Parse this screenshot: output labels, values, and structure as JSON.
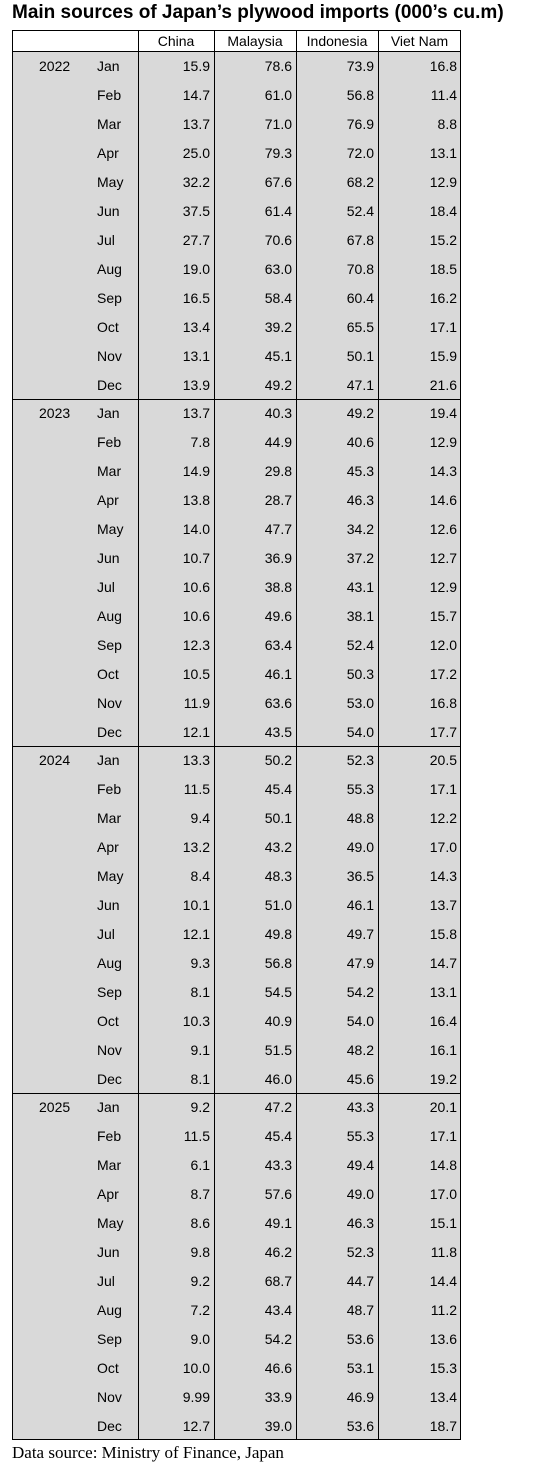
{
  "title": "Main sources of Japan’s plywood imports (000’s cu.m)",
  "table": {
    "columns": [
      "China",
      "Malaysia",
      "Indonesia",
      "Viet Nam"
    ],
    "groups": [
      {
        "year": "2022",
        "rows": [
          [
            "Jan",
            "15.9",
            "78.6",
            "73.9",
            "16.8"
          ],
          [
            "Feb",
            "14.7",
            "61.0",
            "56.8",
            "11.4"
          ],
          [
            "Mar",
            "13.7",
            "71.0",
            "76.9",
            "8.8"
          ],
          [
            "Apr",
            "25.0",
            "79.3",
            "72.0",
            "13.1"
          ],
          [
            "May",
            "32.2",
            "67.6",
            "68.2",
            "12.9"
          ],
          [
            "Jun",
            "37.5",
            "61.4",
            "52.4",
            "18.4"
          ],
          [
            "Jul",
            "27.7",
            "70.6",
            "67.8",
            "15.2"
          ],
          [
            "Aug",
            "19.0",
            "63.0",
            "70.8",
            "18.5"
          ],
          [
            "Sep",
            "16.5",
            "58.4",
            "60.4",
            "16.2"
          ],
          [
            "Oct",
            "13.4",
            "39.2",
            "65.5",
            "17.1"
          ],
          [
            "Nov",
            "13.1",
            "45.1",
            "50.1",
            "15.9"
          ],
          [
            "Dec",
            "13.9",
            "49.2",
            "47.1",
            "21.6"
          ]
        ]
      },
      {
        "year": "2023",
        "rows": [
          [
            "Jan",
            "13.7",
            "40.3",
            "49.2",
            "19.4"
          ],
          [
            "Feb",
            "7.8",
            "44.9",
            "40.6",
            "12.9"
          ],
          [
            "Mar",
            "14.9",
            "29.8",
            "45.3",
            "14.3"
          ],
          [
            "Apr",
            "13.8",
            "28.7",
            "46.3",
            "14.6"
          ],
          [
            "May",
            "14.0",
            "47.7",
            "34.2",
            "12.6"
          ],
          [
            "Jun",
            "10.7",
            "36.9",
            "37.2",
            "12.7"
          ],
          [
            "Jul",
            "10.6",
            "38.8",
            "43.1",
            "12.9"
          ],
          [
            "Aug",
            "10.6",
            "49.6",
            "38.1",
            "15.7"
          ],
          [
            "Sep",
            "12.3",
            "63.4",
            "52.4",
            "12.0"
          ],
          [
            "Oct",
            "10.5",
            "46.1",
            "50.3",
            "17.2"
          ],
          [
            "Nov",
            "11.9",
            "63.6",
            "53.0",
            "16.8"
          ],
          [
            "Dec",
            "12.1",
            "43.5",
            "54.0",
            "17.7"
          ]
        ]
      },
      {
        "year": "2024",
        "rows": [
          [
            "Jan",
            "13.3",
            "50.2",
            "52.3",
            "20.5"
          ],
          [
            "Feb",
            "11.5",
            "45.4",
            "55.3",
            "17.1"
          ],
          [
            "Mar",
            "9.4",
            "50.1",
            "48.8",
            "12.2"
          ],
          [
            "Apr",
            "13.2",
            "43.2",
            "49.0",
            "17.0"
          ],
          [
            "May",
            "8.4",
            "48.3",
            "36.5",
            "14.3"
          ],
          [
            "Jun",
            "10.1",
            "51.0",
            "46.1",
            "13.7"
          ],
          [
            "Jul",
            "12.1",
            "49.8",
            "49.7",
            "15.8"
          ],
          [
            "Aug",
            "9.3",
            "56.8",
            "47.9",
            "14.7"
          ],
          [
            "Sep",
            "8.1",
            "54.5",
            "54.2",
            "13.1"
          ],
          [
            "Oct",
            "10.3",
            "40.9",
            "54.0",
            "16.4"
          ],
          [
            "Nov",
            "9.1",
            "51.5",
            "48.2",
            "16.1"
          ],
          [
            "Dec",
            "8.1",
            "46.0",
            "45.6",
            "19.2"
          ]
        ]
      },
      {
        "year": "2025",
        "rows": [
          [
            "Jan",
            "9.2",
            "47.2",
            "43.3",
            "20.1"
          ],
          [
            "Feb",
            "11.5",
            "45.4",
            "55.3",
            "17.1"
          ],
          [
            "Mar",
            "6.1",
            "43.3",
            "49.4",
            "14.8"
          ],
          [
            "Apr",
            "8.7",
            "57.6",
            "49.0",
            "17.0"
          ],
          [
            "May",
            "8.6",
            "49.1",
            "46.3",
            "15.1"
          ],
          [
            "Jun",
            "9.8",
            "46.2",
            "52.3",
            "11.8"
          ],
          [
            "Jul",
            "9.2",
            "68.7",
            "44.7",
            "14.4"
          ],
          [
            "Aug",
            "7.2",
            "43.4",
            "48.7",
            "11.2"
          ],
          [
            "Sep",
            "9.0",
            "54.2",
            "53.6",
            "13.6"
          ],
          [
            "Oct",
            "10.0",
            "46.6",
            "53.1",
            "15.3"
          ],
          [
            "Nov",
            "9.99",
            "33.9",
            "46.9",
            "13.4"
          ],
          [
            "Dec",
            "12.7",
            "39.0",
            "53.6",
            "18.7"
          ]
        ]
      }
    ]
  },
  "source": "Data source: Ministry of Finance, Japan"
}
